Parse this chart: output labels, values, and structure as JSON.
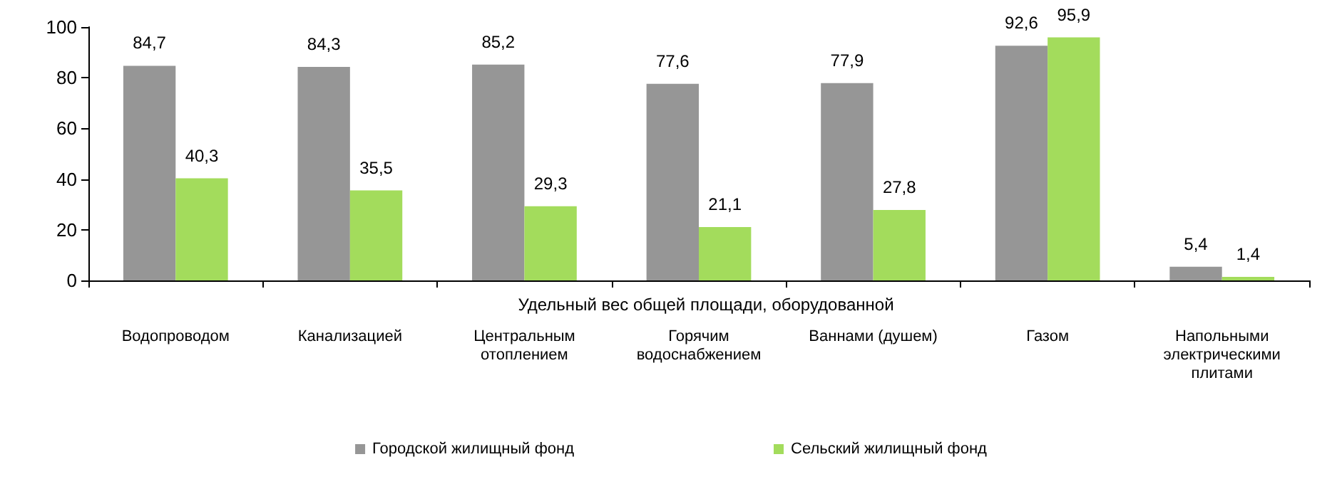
{
  "chart_data": {
    "type": "bar",
    "xlabel": "Удельный вес общей площади, оборудованной",
    "categories": [
      "Водопроводом",
      "Канализацией",
      "Центральным отоплением",
      "Горячим водоснабжением",
      "Ваннами (душем)",
      "Газом",
      "Напольными электрическими плитами"
    ],
    "series": [
      {
        "name": "Городской жилищный фонд",
        "color": "#969696",
        "values": [
          84.7,
          84.3,
          85.2,
          77.6,
          77.9,
          92.6,
          5.4
        ],
        "value_labels": [
          "84,7",
          "84,3",
          "85,2",
          "77,6",
          "77,9",
          "92,6",
          "5,4"
        ]
      },
      {
        "name": "Сельский жилищный фонд",
        "color": "#a3dc5c",
        "values": [
          40.3,
          35.5,
          29.3,
          21.1,
          27.8,
          95.9,
          1.4
        ],
        "value_labels": [
          "40,3",
          "35,5",
          "29,3",
          "21,1",
          "27,8",
          "95,9",
          "1,4"
        ]
      }
    ],
    "ylim": [
      0,
      100
    ],
    "yticks": [
      0,
      20,
      40,
      60,
      80,
      100
    ],
    "grid": false,
    "legend": "bottom"
  }
}
